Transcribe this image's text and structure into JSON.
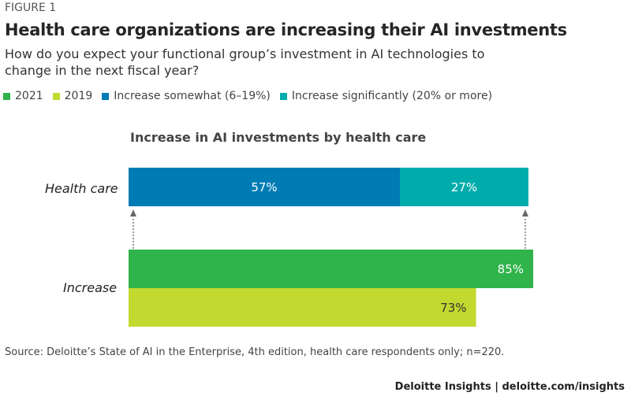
{
  "figure_label": "FIGURE 1",
  "title": "Health care organizations are increasing their AI investments",
  "subtitle": "How do you expect your functional group’s investment in AI technologies to change in the next fiscal year?",
  "legend": [
    {
      "label": "2021",
      "color": "#2fb34a"
    },
    {
      "label": "2019",
      "color": "#c2d92f"
    },
    {
      "label": "Increase somewhat (6–19%)",
      "color": "#007cb5"
    },
    {
      "label": "Increase significantly (20% or more)",
      "color": "#00abab"
    }
  ],
  "chart_data": {
    "type": "bar",
    "orientation": "horizontal",
    "title": "Increase in AI investments by health care",
    "categories": [
      "Health care",
      "Increase"
    ],
    "stacked": {
      "category": "Health care",
      "segments": [
        {
          "name": "Increase somewhat (6–19%)",
          "value": 57,
          "label": "57%",
          "color": "#007cb5"
        },
        {
          "name": "Increase significantly (20% or more)",
          "value": 27,
          "label": "27%",
          "color": "#00abab"
        }
      ]
    },
    "grouped": {
      "category": "Increase",
      "bars": [
        {
          "name": "2021",
          "value": 85,
          "label": "85%",
          "color": "#2fb34a",
          "label_color": "#ffffff"
        },
        {
          "name": "2019",
          "value": 73,
          "label": "73%",
          "color": "#c2d92f",
          "label_color": "#333333"
        }
      ]
    },
    "xlim": [
      0,
      85
    ],
    "grid": false,
    "legend_placement": "top-left"
  },
  "source": "Source: Deloitte’s State of AI in the Enterprise, 4th edition, health care respondents only; n=220.",
  "footer": "Deloitte Insights | deloitte.com/insights"
}
